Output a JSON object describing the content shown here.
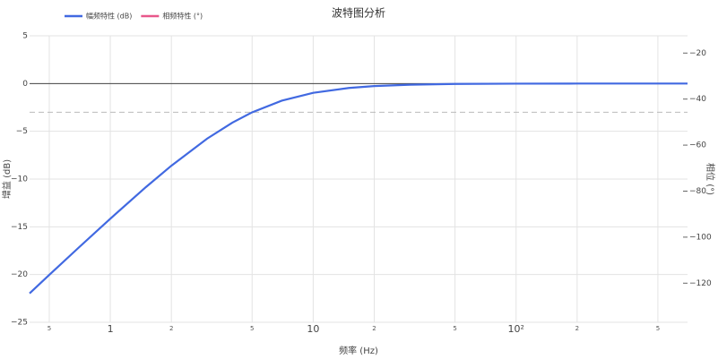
{
  "chart_data": {
    "type": "line",
    "title": "波特图分析",
    "x_label": "频率 (Hz)",
    "y_label": "增益 (dB)",
    "y2_label": "相位 (°)",
    "x_scale": "log",
    "grid": true,
    "legend": "top-left",
    "x": [
      0.4,
      0.5,
      0.7,
      1,
      1.5,
      2,
      3,
      4,
      5,
      7,
      10,
      15,
      20,
      30,
      50,
      100,
      200,
      500,
      700
    ],
    "series": [
      {
        "name": "幅频特性 (dB)",
        "color": "#4169e1",
        "values": [
          -21.97,
          -20.04,
          -17.16,
          -14.15,
          -10.83,
          -8.6,
          -5.77,
          -4.09,
          -3.01,
          -1.79,
          -0.97,
          -0.46,
          -0.26,
          -0.12,
          -0.04,
          -0.01,
          0,
          0,
          0
        ]
      },
      {
        "name": "相频特性 (°)",
        "color": "#e8578a",
        "axis": "y2",
        "values": [
          null,
          null,
          null,
          null,
          null,
          null,
          null,
          null,
          null,
          null,
          null,
          null,
          null,
          null,
          null,
          null,
          null,
          null,
          null
        ]
      }
    ],
    "reference_line": -3,
    "xlim": [
      0.4,
      700
    ],
    "xticks": [
      {
        "value": 0.5,
        "label": "5"
      },
      1,
      {
        "value": 2,
        "label": "2"
      },
      {
        "value": 5,
        "label": "5"
      },
      10,
      {
        "value": 20,
        "label": "2"
      },
      {
        "value": 50,
        "label": "5"
      },
      {
        "value": 100,
        "label": "10²"
      },
      {
        "value": 200,
        "label": "2"
      },
      {
        "value": 500,
        "label": "5"
      }
    ],
    "ylim": [
      -25,
      5
    ],
    "yticks": [
      5,
      0,
      {
        "value": -5,
        "label": "−5"
      },
      {
        "value": -10,
        "label": "−10"
      },
      {
        "value": -15,
        "label": "−15"
      },
      {
        "value": -20,
        "label": "−20"
      },
      {
        "value": -25,
        "label": "−25"
      }
    ],
    "y2lim": [
      -137,
      -12.5
    ],
    "y2ticks": [
      {
        "value": -20,
        "label": "−20"
      },
      {
        "value": -40,
        "label": "−40"
      },
      {
        "value": -60,
        "label": "−60"
      },
      {
        "value": -80,
        "label": "−80"
      },
      {
        "value": -100,
        "label": "−100"
      },
      {
        "value": -120,
        "label": "−120"
      }
    ]
  }
}
